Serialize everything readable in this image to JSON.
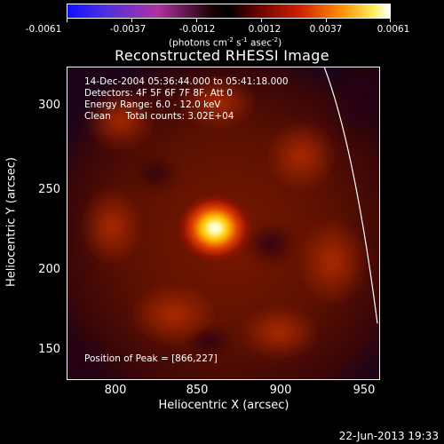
{
  "colorbar": {
    "ticks": [
      "-0.0061",
      "-0.0037",
      "-0.0012",
      "0.0012",
      "0.0037",
      "0.0061"
    ],
    "units": "(photons cm",
    "units_sup1": "-2",
    "units_mid1": " s",
    "units_sup2": "-1",
    "units_mid2": " asec",
    "units_sup3": "-2",
    "units_end": ")"
  },
  "title": "Reconstructed RHESSI Image",
  "info": {
    "line1": "14-Dec-2004 05:36:44.000 to 05:41:18.000",
    "line2": "Detectors: 4F 5F 6F 7F 8F, Att 0",
    "line3": "Energy Range: 6.0 - 12.0 keV",
    "line4": "Clean     Total counts: 3.02E+04",
    "peak": "Position of Peak = [866,227]"
  },
  "axes": {
    "xlabel": "Heliocentric X (arcsec)",
    "ylabel": "Heliocentric Y (arcsec)",
    "xticks": [
      "800",
      "850",
      "900",
      "950"
    ],
    "yticks": [
      "300",
      "250",
      "200",
      "150"
    ]
  },
  "timestamp": "22-Jun-2013 19:33",
  "colors": {
    "background": "#000000",
    "foreground": "#ffffff"
  }
}
